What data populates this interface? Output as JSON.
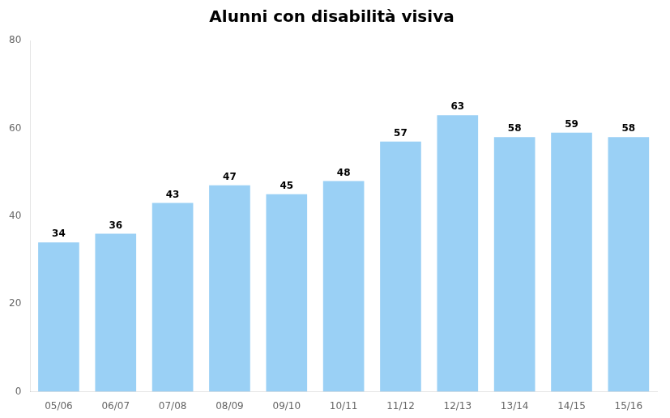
{
  "chart_data": {
    "type": "bar",
    "title": "Alunni con disabilità visiva",
    "categories": [
      "05/06",
      "06/07",
      "07/08",
      "08/09",
      "09/10",
      "10/11",
      "11/12",
      "12/13",
      "13/14",
      "14/15",
      "15/16"
    ],
    "values": [
      34,
      36,
      43,
      47,
      45,
      48,
      57,
      63,
      58,
      59,
      58
    ],
    "ylim": [
      0,
      80
    ],
    "yticks": [
      0,
      20,
      40,
      60,
      80
    ],
    "grid": false,
    "data_labels": true
  }
}
